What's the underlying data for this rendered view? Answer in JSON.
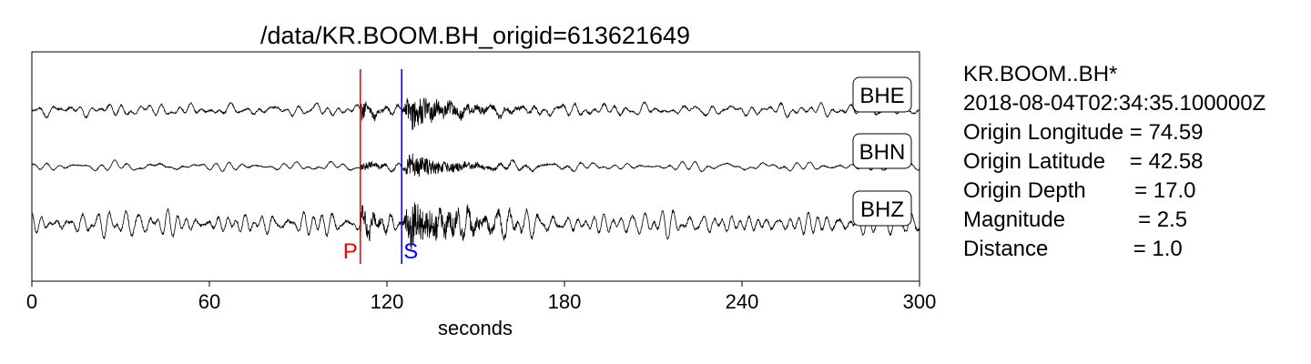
{
  "chart_data": {
    "type": "line",
    "title": "/data/KR.BOOM.BH_origid=613621649",
    "xlabel": "seconds",
    "ylabel": "",
    "xlim": [
      0,
      300
    ],
    "x_ticks": [
      0,
      60,
      120,
      180,
      240,
      300
    ],
    "x_tick_labels": [
      "0",
      "60",
      "120",
      "180",
      "240",
      "300"
    ],
    "grid": false,
    "series": [
      {
        "name": "BHE",
        "description": "E-component waveform trace, small background noise before P, strong burst after S",
        "p_burst_amplitude": 0.45,
        "s_burst_amplitude": 1.0,
        "noise_amplitude": 0.25,
        "color": "#000000"
      },
      {
        "name": "BHN",
        "description": "N-component waveform trace, lowest amplitude of the three",
        "p_burst_amplitude": 0.3,
        "s_burst_amplitude": 0.7,
        "noise_amplitude": 0.15,
        "color": "#000000"
      },
      {
        "name": "BHZ",
        "description": "Z-component waveform trace, largest background noise and strongest burst",
        "p_burst_amplitude": 0.65,
        "s_burst_amplitude": 1.4,
        "noise_amplitude": 0.42,
        "color": "#000000"
      }
    ],
    "phase_markers": [
      {
        "label": "P",
        "x": 111,
        "color": "#ff0000"
      },
      {
        "label": "S",
        "x": 125,
        "color": "#0000ff"
      }
    ]
  },
  "info": {
    "lines": [
      "KR.BOOM..BH*",
      "2018-08-04T02:34:35.100000Z",
      "Origin Longitude = 74.59",
      "Origin Latitude    = 42.58",
      "Origin Depth        = 17.0",
      "Magnitude            = 2.5",
      "Distance              = 1.0"
    ]
  }
}
